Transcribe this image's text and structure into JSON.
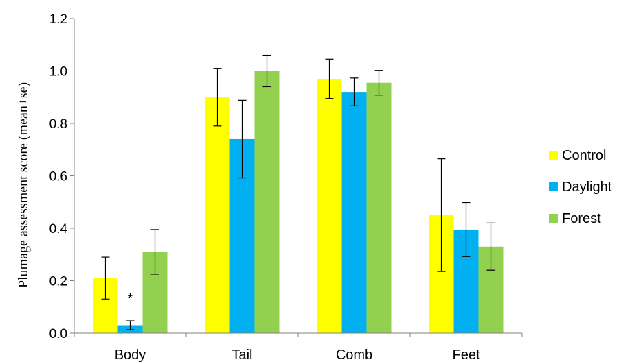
{
  "chart_data": {
    "type": "bar",
    "title": "",
    "xlabel": "",
    "ylabel": "Plumage assessment score (mean±se)",
    "ylim": [
      0,
      1.2
    ],
    "yticks": [
      "0.0",
      "0.2",
      "0.4",
      "0.6",
      "0.8",
      "1.0",
      "1.2"
    ],
    "grid": false,
    "legend_position": "right",
    "categories": [
      "Body",
      "Tail",
      "Comb",
      "Feet"
    ],
    "series": [
      {
        "name": "Control",
        "color": "#FFFF00",
        "values": [
          0.21,
          0.9,
          0.97,
          0.45
        ],
        "errors": [
          0.08,
          0.11,
          0.075,
          0.215
        ]
      },
      {
        "name": "Daylight",
        "color": "#00B0F0",
        "values": [
          0.03,
          0.74,
          0.92,
          0.395
        ],
        "errors": [
          0.017,
          0.148,
          0.053,
          0.103
        ]
      },
      {
        "name": "Forest",
        "color": "#92D050",
        "values": [
          0.31,
          1.0,
          0.955,
          0.33
        ],
        "errors": [
          0.085,
          0.06,
          0.047,
          0.09
        ]
      }
    ],
    "annotations": [
      {
        "text": "*",
        "category": "Body",
        "series": "Daylight"
      }
    ]
  }
}
